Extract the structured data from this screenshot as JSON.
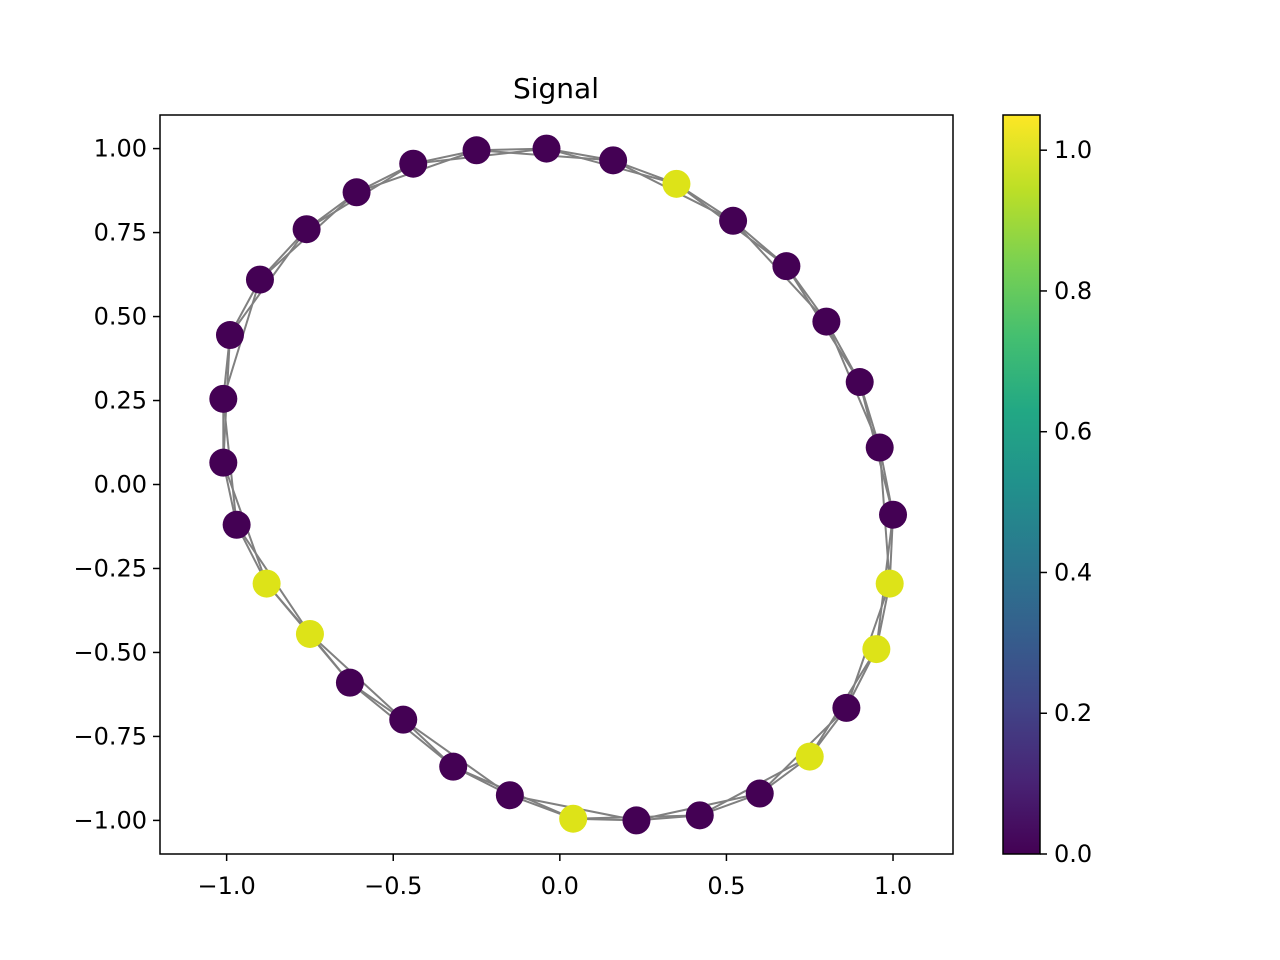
{
  "chart_data": {
    "type": "scatter",
    "title": "Signal",
    "xlabel": "",
    "ylabel": "",
    "xlim": [
      -1.2,
      1.18
    ],
    "ylim": [
      -1.1,
      1.1
    ],
    "x_ticks": [
      -1.0,
      -0.5,
      0.0,
      0.5,
      1.0
    ],
    "x_tick_labels": [
      "−1.0",
      "−0.5",
      "0.0",
      "0.5",
      "1.0"
    ],
    "y_ticks": [
      1.0,
      0.75,
      0.5,
      0.25,
      0.0,
      -0.25,
      -0.5,
      -0.75,
      -1.0
    ],
    "y_tick_labels": [
      "1.00",
      "0.75",
      "0.50",
      "0.25",
      "0.00",
      "−0.25",
      "−0.50",
      "−0.75",
      "−1.00"
    ],
    "grid": false,
    "nodes": [
      {
        "x": -0.04,
        "y": 1.0,
        "value": 0
      },
      {
        "x": 0.16,
        "y": 0.965,
        "value": 0
      },
      {
        "x": 0.35,
        "y": 0.895,
        "value": 1
      },
      {
        "x": 0.52,
        "y": 0.785,
        "value": 0
      },
      {
        "x": 0.68,
        "y": 0.65,
        "value": 0
      },
      {
        "x": 0.8,
        "y": 0.485,
        "value": 0
      },
      {
        "x": 0.9,
        "y": 0.305,
        "value": 0
      },
      {
        "x": 0.96,
        "y": 0.11,
        "value": 0
      },
      {
        "x": 1.0,
        "y": -0.09,
        "value": 0
      },
      {
        "x": 0.99,
        "y": -0.295,
        "value": 1
      },
      {
        "x": 0.95,
        "y": -0.49,
        "value": 1
      },
      {
        "x": 0.86,
        "y": -0.665,
        "value": 0
      },
      {
        "x": 0.75,
        "y": -0.81,
        "value": 1
      },
      {
        "x": 0.6,
        "y": -0.92,
        "value": 0
      },
      {
        "x": 0.42,
        "y": -0.985,
        "value": 0
      },
      {
        "x": 0.23,
        "y": -1.0,
        "value": 0
      },
      {
        "x": 0.04,
        "y": -0.995,
        "value": 1
      },
      {
        "x": -0.15,
        "y": -0.925,
        "value": 0
      },
      {
        "x": -0.32,
        "y": -0.84,
        "value": 0
      },
      {
        "x": -0.47,
        "y": -0.7,
        "value": 0
      },
      {
        "x": -0.63,
        "y": -0.59,
        "value": 0
      },
      {
        "x": -0.75,
        "y": -0.445,
        "value": 1
      },
      {
        "x": -0.88,
        "y": -0.295,
        "value": 1
      },
      {
        "x": -0.97,
        "y": -0.12,
        "value": 0
      },
      {
        "x": -1.01,
        "y": 0.065,
        "value": 0
      },
      {
        "x": -1.01,
        "y": 0.255,
        "value": 0
      },
      {
        "x": -0.99,
        "y": 0.445,
        "value": 0
      },
      {
        "x": -0.9,
        "y": 0.61,
        "value": 0
      },
      {
        "x": -0.76,
        "y": 0.76,
        "value": 0
      },
      {
        "x": -0.61,
        "y": 0.87,
        "value": 0
      },
      {
        "x": -0.44,
        "y": 0.955,
        "value": 0
      },
      {
        "x": -0.25,
        "y": 0.995,
        "value": 0
      }
    ],
    "edge_color": "#808080",
    "colorbar": {
      "colormap": "viridis",
      "min": 0.0,
      "max": 1.05,
      "ticks": [
        0.0,
        0.2,
        0.4,
        0.6,
        0.8,
        1.0
      ],
      "tick_labels": [
        "0.0",
        "0.2",
        "0.4",
        "0.6",
        "0.8",
        "1.0"
      ]
    },
    "colors": {
      "low": "#440154",
      "high": "#dde318"
    }
  }
}
